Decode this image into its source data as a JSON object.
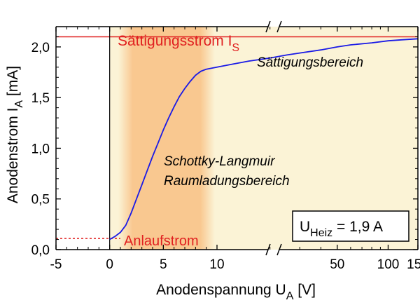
{
  "chart_data": {
    "type": "line",
    "xlabel": "Anodenspannung U",
    "xlabel_sub": "A",
    "xlabel_unit": " [V]",
    "ylabel": "Anodenstrom I",
    "ylabel_sub": "A",
    "ylabel_unit": " [mA]",
    "x_axis_note": "broken axis: linear from -5 to 10, logarithmic from 10 to 150",
    "xlim": [
      -5,
      150
    ],
    "ylim": [
      0,
      2.2
    ],
    "x_ticks": [
      -5,
      0,
      5,
      10,
      50,
      100,
      150
    ],
    "x_tick_labels": [
      "-5",
      "0",
      "5",
      "10",
      "50",
      "100",
      "150"
    ],
    "y_ticks": [
      0,
      0.5,
      1.0,
      1.5,
      2.0
    ],
    "y_tick_labels": [
      "0,0",
      "0,5",
      "1,0",
      "1,5",
      "2,0"
    ],
    "grid": false,
    "colors": {
      "curve": "#1a1ae6",
      "saturation_line": "#e02020",
      "annotation_red": "#e02020",
      "region_space_charge": "#f9c890",
      "region_saturation": "#fbf3d6",
      "frame": "#000000"
    },
    "series": [
      {
        "x": [
          0,
          0.5,
          1,
          1.5,
          2,
          2.5,
          3,
          3.5,
          4,
          4.5,
          5,
          5.5,
          6,
          6.5,
          7,
          7.5,
          8,
          8.5,
          9,
          9.5,
          10,
          12,
          15,
          20,
          25,
          30,
          40,
          50,
          60,
          80,
          100,
          120,
          150
        ],
        "y": [
          0.1,
          0.13,
          0.17,
          0.24,
          0.36,
          0.5,
          0.64,
          0.78,
          0.92,
          1.05,
          1.18,
          1.3,
          1.41,
          1.51,
          1.59,
          1.66,
          1.72,
          1.76,
          1.78,
          1.79,
          1.8,
          1.83,
          1.86,
          1.89,
          1.92,
          1.94,
          1.97,
          2.0,
          2.02,
          2.04,
          2.06,
          2.07,
          2.08
        ]
      }
    ],
    "saturation_current": 2.1,
    "onset_current": 0.11,
    "annotations": {
      "saturation": "Sättigungsstrom I",
      "saturation_sub": "S",
      "saturation_region": "Sättigungsbereich",
      "space_charge_line1": "Schottky-Langmuir",
      "space_charge_line2": "Raumladungsbereich",
      "onset": "Anlaufstrom",
      "heater_label": "U",
      "heater_sub": "Heiz",
      "heater_value": " = 1,9 A"
    }
  }
}
